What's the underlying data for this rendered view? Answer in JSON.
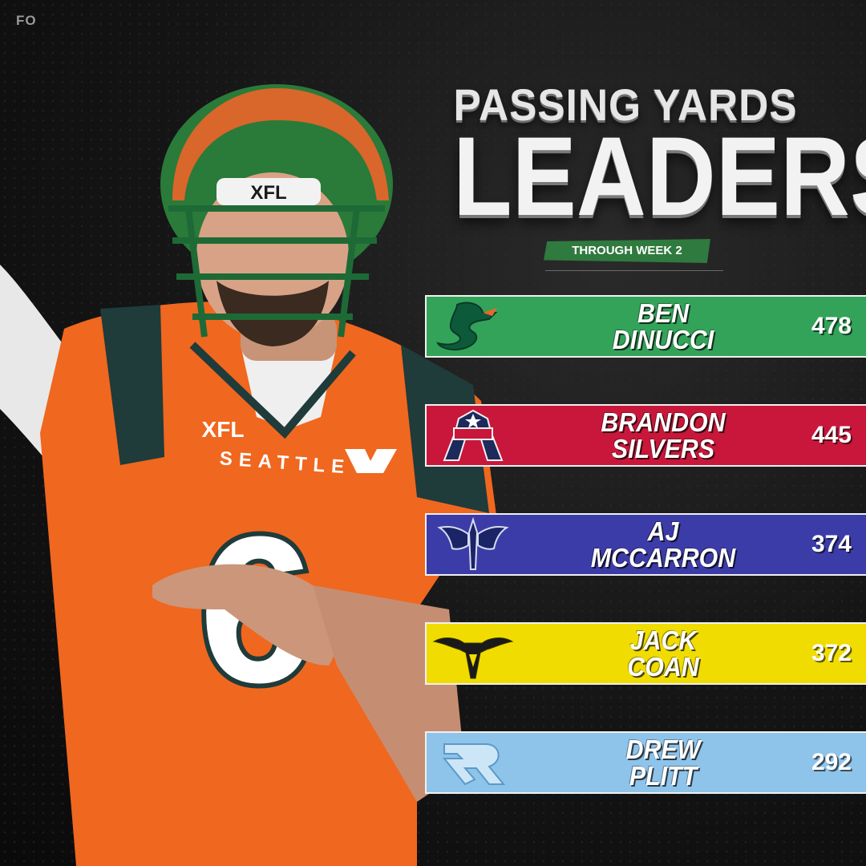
{
  "brand": "FO",
  "title_line1": "PASSING YARDS",
  "title_line2": "LEADERS",
  "subtitle": "THROUGH WEEK 2",
  "player_graphic": {
    "helmet_text": "XFL",
    "jersey_brand": "XFL",
    "jersey_city": "SEATTLE",
    "jersey_number": "6",
    "colors": {
      "jersey": "#f0671f",
      "helmet": "#2a7a3a",
      "sleeve": "#e9e9e9"
    }
  },
  "leaders": [
    {
      "first": "BEN",
      "last": "DINUCCI",
      "yards": "478",
      "color": "#33a35a",
      "logo": "seattle-dragon-icon"
    },
    {
      "first": "BRANDON",
      "last": "SILVERS",
      "yards": "445",
      "color": "#c8173a",
      "logo": "houston-roughnecks-icon"
    },
    {
      "first": "AJ",
      "last": "MCCARRON",
      "yards": "374",
      "color": "#3c3ca8",
      "logo": "st-louis-battlehawks-icon"
    },
    {
      "first": "JACK",
      "last": "COAN",
      "yards": "372",
      "color": "#f0dc00",
      "logo": "san-antonio-brahmas-icon"
    },
    {
      "first": "DREW",
      "last": "PLITT",
      "yards": "292",
      "color": "#8ec3ea",
      "logo": "arlington-renegades-icon"
    }
  ]
}
